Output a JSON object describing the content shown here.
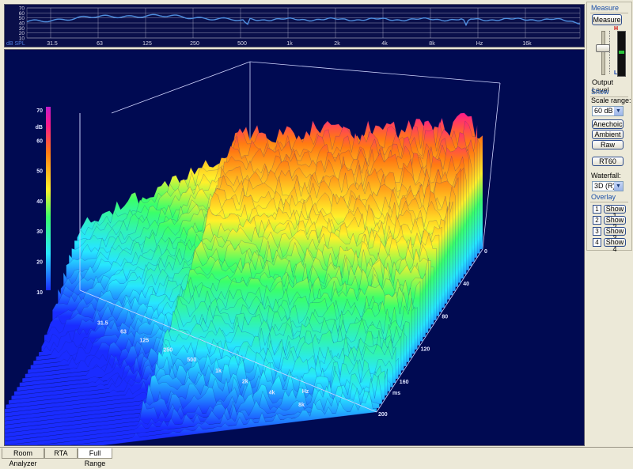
{
  "top_chart": {
    "unit_label": "dB SPL",
    "y_ticks": [
      "70",
      "60",
      "50",
      "40",
      "30",
      "20",
      "10"
    ],
    "x_ticks": [
      "31.5",
      "63",
      "125",
      "250",
      "500",
      "1k",
      "2k",
      "4k",
      "8k",
      "Hz",
      "16k"
    ],
    "line_color": "#4f8fe0"
  },
  "chart_data": {
    "type": "waterfall-surface",
    "z_label": "dB",
    "z_ticks": [
      "70",
      "60",
      "50",
      "40",
      "30",
      "20",
      "10"
    ],
    "freq_ticks": [
      "31.5",
      "63",
      "125",
      "250",
      "500",
      "1k",
      "2k",
      "4k",
      "8k"
    ],
    "freq_unit": "Hz",
    "time_ticks": [
      "0",
      "40",
      "80",
      "120",
      "160",
      "200"
    ],
    "time_unit": "ms",
    "colormap": [
      "#1a2cff",
      "#27e6ff",
      "#3aff6a",
      "#fff02a",
      "#ff7a12",
      "#ff1a8a",
      "#c21cc8"
    ]
  },
  "panel": {
    "measure_title": "Measure",
    "measure_button": "Measure",
    "meter_high": "H",
    "meter_low": "L",
    "output_level_label": "Output Level",
    "show_title": "Show",
    "scale_range_label": "Scale range:",
    "scale_range_value": "60 dB",
    "anechoic_button": "Anechoic",
    "ambient_button": "Ambient",
    "raw_button": "Raw",
    "rt60_button": "RT60",
    "waterfall_label": "Waterfall:",
    "waterfall_value": "3D (R)",
    "overlay_title": "Overlay",
    "overlays": [
      {
        "num": "1",
        "label": "Show 1"
      },
      {
        "num": "2",
        "label": "Show 2"
      },
      {
        "num": "3",
        "label": "Show 3"
      },
      {
        "num": "4",
        "label": "Show 4"
      }
    ]
  },
  "tabs": [
    "Room Analyzer",
    "RTA",
    "Full Range"
  ],
  "active_tab": "Full Range"
}
